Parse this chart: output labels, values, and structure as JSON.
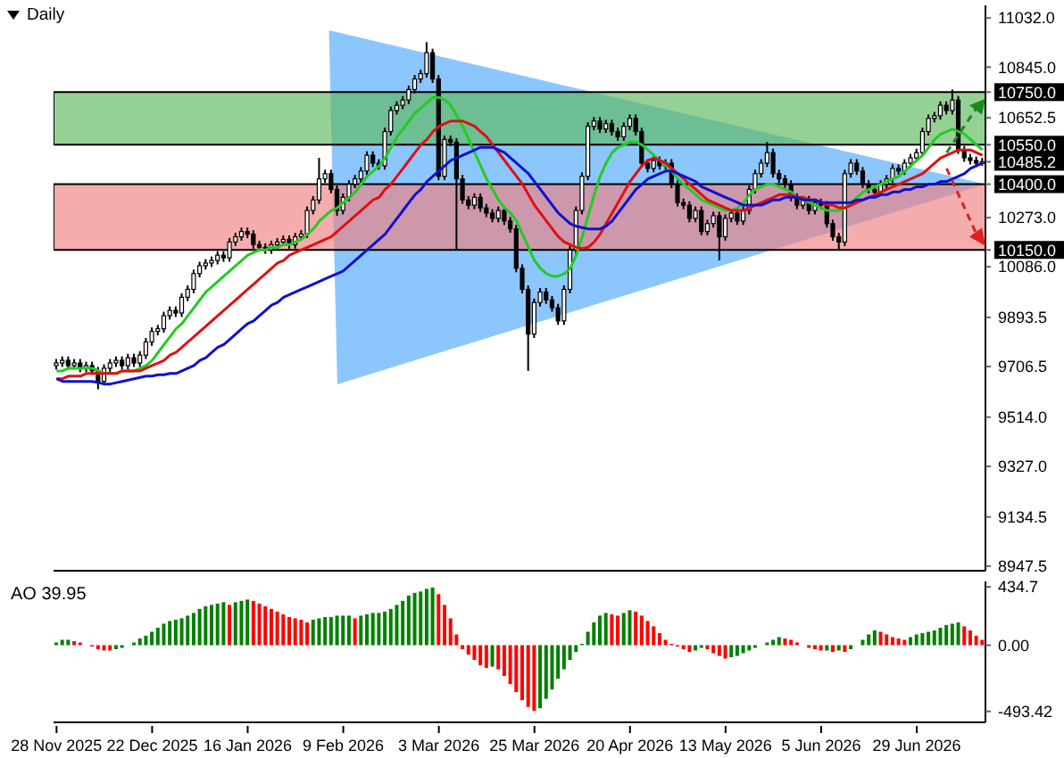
{
  "chart_data": [
    {
      "type": "candlestick",
      "title": "Daily",
      "categories": [
        null,
        null,
        null,
        null,
        null,
        null,
        null,
        null,
        null,
        null,
        null,
        null,
        null,
        null,
        null,
        null,
        null,
        null,
        null,
        null,
        null,
        null,
        null,
        null,
        null,
        null,
        null,
        null,
        null,
        null,
        null,
        null,
        null,
        null,
        null,
        null,
        null,
        null,
        null,
        null,
        null,
        null,
        null,
        null,
        null,
        null,
        null,
        null,
        null,
        null,
        null,
        null,
        null,
        null,
        null,
        null,
        null,
        null,
        null,
        null,
        null,
        null,
        null,
        null,
        null,
        null,
        null,
        null,
        null,
        null,
        null,
        null,
        null,
        null,
        null,
        null,
        null,
        null,
        null,
        null,
        null,
        null,
        null,
        null,
        null,
        null,
        null,
        null,
        null,
        null,
        null,
        null,
        null,
        null,
        null,
        null,
        null,
        null,
        null,
        null,
        null,
        null,
        null,
        null,
        null,
        null,
        null,
        null,
        null,
        null,
        null,
        null,
        null,
        null,
        null,
        null,
        null,
        null,
        null,
        null,
        null,
        null,
        null,
        null,
        null,
        null,
        null,
        null,
        null,
        null,
        null,
        null,
        null,
        null,
        null,
        null,
        null,
        null,
        null,
        null,
        null,
        null,
        null,
        null,
        null,
        null,
        null,
        null,
        null,
        null,
        null,
        null,
        null,
        null,
        null,
        null
      ],
      "ohlc": [
        [
          9710,
          9735,
          9695,
          9720
        ],
        [
          9720,
          9745,
          9705,
          9730
        ],
        [
          9730,
          9745,
          9695,
          9710
        ],
        [
          9710,
          9735,
          9695,
          9720
        ],
        [
          9720,
          9735,
          9685,
          9700
        ],
        [
          9700,
          9725,
          9685,
          9710
        ],
        [
          9710,
          9725,
          9675,
          9690
        ],
        [
          9690,
          9705,
          9620,
          9650
        ],
        [
          9650,
          9715,
          9635,
          9700
        ],
        [
          9700,
          9735,
          9685,
          9720
        ],
        [
          9720,
          9745,
          9705,
          9730
        ],
        [
          9730,
          9745,
          9695,
          9710
        ],
        [
          9710,
          9755,
          9695,
          9740
        ],
        [
          9740,
          9755,
          9705,
          9720
        ],
        [
          9720,
          9765,
          9705,
          9750
        ],
        [
          9750,
          9815,
          9735,
          9800
        ],
        [
          9800,
          9855,
          9785,
          9840
        ],
        [
          9840,
          9865,
          9825,
          9850
        ],
        [
          9850,
          9915,
          9835,
          9900
        ],
        [
          9900,
          9935,
          9885,
          9920
        ],
        [
          9920,
          9935,
          9895,
          9910
        ],
        [
          9910,
          9985,
          9895,
          9970
        ],
        [
          9970,
          10015,
          9955,
          10000
        ],
        [
          10000,
          10075,
          9985,
          10060
        ],
        [
          10060,
          10105,
          10045,
          10090
        ],
        [
          10090,
          10115,
          10075,
          10100
        ],
        [
          10100,
          10125,
          10085,
          10110
        ],
        [
          10110,
          10145,
          10095,
          10130
        ],
        [
          10130,
          10145,
          10105,
          10120
        ],
        [
          10120,
          10195,
          10105,
          10180
        ],
        [
          10180,
          10215,
          10165,
          10200
        ],
        [
          10200,
          10235,
          10185,
          10220
        ],
        [
          10220,
          10235,
          10195,
          10210
        ],
        [
          10210,
          10225,
          10155,
          10170
        ],
        [
          10170,
          10185,
          10145,
          10160
        ],
        [
          10160,
          10175,
          10135,
          10150
        ],
        [
          10150,
          10185,
          10135,
          10170
        ],
        [
          10170,
          10195,
          10155,
          10180
        ],
        [
          10180,
          10205,
          10165,
          10190
        ],
        [
          10190,
          10205,
          10155,
          10170
        ],
        [
          10170,
          10215,
          10155,
          10200
        ],
        [
          10200,
          10225,
          10185,
          10210
        ],
        [
          10210,
          10315,
          10195,
          10300
        ],
        [
          10300,
          10355,
          10285,
          10340
        ],
        [
          10340,
          10500,
          10325,
          10420
        ],
        [
          10420,
          10455,
          10405,
          10440
        ],
        [
          10440,
          10455,
          10365,
          10380
        ],
        [
          10380,
          10395,
          10280,
          10300
        ],
        [
          10300,
          10365,
          10285,
          10350
        ],
        [
          10350,
          10415,
          10335,
          10400
        ],
        [
          10400,
          10435,
          10385,
          10420
        ],
        [
          10420,
          10465,
          10405,
          10450
        ],
        [
          10450,
          10525,
          10435,
          10510
        ],
        [
          10510,
          10525,
          10465,
          10480
        ],
        [
          10480,
          10495,
          10455,
          10470
        ],
        [
          10470,
          10615,
          10455,
          10600
        ],
        [
          10600,
          10695,
          10585,
          10680
        ],
        [
          10680,
          10715,
          10665,
          10700
        ],
        [
          10700,
          10735,
          10685,
          10720
        ],
        [
          10720,
          10775,
          10705,
          10760
        ],
        [
          10760,
          10815,
          10745,
          10800
        ],
        [
          10800,
          10835,
          10785,
          10820
        ],
        [
          10820,
          10940,
          10805,
          10900
        ],
        [
          10900,
          10915,
          10785,
          10800
        ],
        [
          10800,
          10815,
          10415,
          10430
        ],
        [
          10430,
          10585,
          10415,
          10570
        ],
        [
          10570,
          10585,
          10545,
          10560
        ],
        [
          10560,
          10575,
          10150,
          10420
        ],
        [
          10420,
          10435,
          10325,
          10340
        ],
        [
          10340,
          10355,
          10305,
          10320
        ],
        [
          10320,
          10365,
          10305,
          10350
        ],
        [
          10350,
          10365,
          10295,
          10310
        ],
        [
          10310,
          10325,
          10275,
          10290
        ],
        [
          10290,
          10305,
          10255,
          10270
        ],
        [
          10270,
          10315,
          10255,
          10300
        ],
        [
          10300,
          10315,
          10245,
          10260
        ],
        [
          10260,
          10275,
          10215,
          10230
        ],
        [
          10230,
          10245,
          10065,
          10080
        ],
        [
          10080,
          10095,
          9985,
          10000
        ],
        [
          10000,
          10015,
          9690,
          9830
        ],
        [
          9830,
          9965,
          9815,
          9950
        ],
        [
          9950,
          10005,
          9935,
          9990
        ],
        [
          9990,
          10005,
          9945,
          9960
        ],
        [
          9960,
          9975,
          9915,
          9930
        ],
        [
          9930,
          9945,
          9865,
          9880
        ],
        [
          9880,
          10015,
          9865,
          10000
        ],
        [
          10000,
          10165,
          9985,
          10150
        ],
        [
          10150,
          10315,
          10135,
          10300
        ],
        [
          10300,
          10445,
          10285,
          10430
        ],
        [
          10430,
          10635,
          10415,
          10620
        ],
        [
          10620,
          10655,
          10605,
          10640
        ],
        [
          10640,
          10655,
          10595,
          10610
        ],
        [
          10610,
          10645,
          10595,
          10630
        ],
        [
          10630,
          10645,
          10585,
          10600
        ],
        [
          10600,
          10615,
          10565,
          10580
        ],
        [
          10580,
          10635,
          10565,
          10620
        ],
        [
          10620,
          10665,
          10605,
          10650
        ],
        [
          10650,
          10665,
          10585,
          10600
        ],
        [
          10600,
          10615,
          10465,
          10480
        ],
        [
          10480,
          10495,
          10445,
          10460
        ],
        [
          10460,
          10505,
          10445,
          10490
        ],
        [
          10490,
          10505,
          10455,
          10470
        ],
        [
          10470,
          10495,
          10455,
          10480
        ],
        [
          10480,
          10495,
          10385,
          10400
        ],
        [
          10400,
          10415,
          10315,
          10330
        ],
        [
          10330,
          10345,
          10305,
          10320
        ],
        [
          10320,
          10335,
          10255,
          10270
        ],
        [
          10270,
          10315,
          10255,
          10300
        ],
        [
          10300,
          10315,
          10205,
          10220
        ],
        [
          10220,
          10265,
          10205,
          10250
        ],
        [
          10250,
          10295,
          10235,
          10280
        ],
        [
          10280,
          10295,
          10110,
          10200
        ],
        [
          10200,
          10285,
          10185,
          10270
        ],
        [
          10270,
          10305,
          10255,
          10290
        ],
        [
          10290,
          10305,
          10245,
          10260
        ],
        [
          10260,
          10315,
          10245,
          10300
        ],
        [
          10300,
          10395,
          10285,
          10380
        ],
        [
          10380,
          10455,
          10365,
          10440
        ],
        [
          10440,
          10495,
          10425,
          10480
        ],
        [
          10480,
          10560,
          10465,
          10520
        ],
        [
          10520,
          10535,
          10425,
          10440
        ],
        [
          10440,
          10455,
          10405,
          10420
        ],
        [
          10420,
          10435,
          10385,
          10400
        ],
        [
          10400,
          10415,
          10335,
          10350
        ],
        [
          10350,
          10365,
          10305,
          10320
        ],
        [
          10320,
          10355,
          10305,
          10340
        ],
        [
          10340,
          10355,
          10285,
          10300
        ],
        [
          10300,
          10345,
          10285,
          10330
        ],
        [
          10330,
          10345,
          10305,
          10320
        ],
        [
          10320,
          10335,
          10235,
          10250
        ],
        [
          10250,
          10265,
          10185,
          10200
        ],
        [
          10200,
          10215,
          10150,
          10180
        ],
        [
          10180,
          10455,
          10165,
          10440
        ],
        [
          10440,
          10495,
          10425,
          10480
        ],
        [
          10480,
          10495,
          10435,
          10450
        ],
        [
          10450,
          10465,
          10385,
          10400
        ],
        [
          10400,
          10415,
          10365,
          10380
        ],
        [
          10380,
          10395,
          10355,
          10370
        ],
        [
          10370,
          10415,
          10355,
          10400
        ],
        [
          10400,
          10435,
          10385,
          10420
        ],
        [
          10420,
          10475,
          10405,
          10460
        ],
        [
          10460,
          10475,
          10435,
          10450
        ],
        [
          10450,
          10495,
          10435,
          10480
        ],
        [
          10480,
          10515,
          10465,
          10500
        ],
        [
          10500,
          10535,
          10485,
          10520
        ],
        [
          10520,
          10615,
          10505,
          10600
        ],
        [
          10600,
          10665,
          10585,
          10650
        ],
        [
          10650,
          10675,
          10635,
          10660
        ],
        [
          10660,
          10715,
          10645,
          10700
        ],
        [
          10700,
          10715,
          10665,
          10680
        ],
        [
          10680,
          10760,
          10665,
          10720
        ],
        [
          10720,
          10735,
          10515,
          10530
        ],
        [
          10530,
          10545,
          10485,
          10500
        ],
        [
          10500,
          10515,
          10475,
          10490
        ],
        [
          10490,
          10505,
          10465,
          10480
        ],
        [
          10480,
          10500,
          10470,
          10485.2
        ]
      ],
      "series": [
        {
          "type": "line",
          "color": "#22cc22",
          "values": [
            9690,
            9690,
            9700,
            9700,
            9700,
            9700,
            9700,
            9690,
            9680,
            9680,
            9680,
            9690,
            9690,
            9690,
            9700,
            9710,
            9730,
            9760,
            9790,
            9820,
            9850,
            9870,
            9900,
            9930,
            9960,
            9990,
            10010,
            10030,
            10050,
            10070,
            10090,
            10110,
            10130,
            10140,
            10150,
            10150,
            10160,
            10160,
            10170,
            10170,
            10180,
            10190,
            10210,
            10230,
            10260,
            10280,
            10300,
            10310,
            10330,
            10350,
            10370,
            10400,
            10430,
            10450,
            10470,
            10500,
            10540,
            10580,
            10610,
            10640,
            10670,
            10690,
            10710,
            10730,
            10730,
            10720,
            10700,
            10660,
            10620,
            10570,
            10520,
            10470,
            10420,
            10380,
            10340,
            10310,
            10290,
            10260,
            10210,
            10160,
            10110,
            10080,
            10060,
            10050,
            10050,
            10060,
            10080,
            10130,
            10200,
            10280,
            10360,
            10430,
            10480,
            10520,
            10540,
            10550,
            10560,
            10560,
            10550,
            10530,
            10510,
            10490,
            10470,
            10450,
            10420,
            10400,
            10380,
            10360,
            10340,
            10330,
            10320,
            10310,
            10300,
            10300,
            10310,
            10330,
            10360,
            10380,
            10390,
            10400,
            10400,
            10390,
            10380,
            10370,
            10350,
            10340,
            10330,
            10320,
            10310,
            10300,
            10300,
            10300,
            10310,
            10330,
            10350,
            10370,
            10380,
            10390,
            10400,
            10410,
            10420,
            10430,
            10450,
            10470,
            10490,
            10510,
            10540,
            10570,
            10590,
            10600,
            10610,
            10600,
            10590,
            10570,
            10550,
            10530
          ]
        },
        {
          "type": "line",
          "color": "#e01010",
          "values": [
            9660,
            9660,
            9670,
            9670,
            9670,
            9680,
            9680,
            9680,
            9680,
            9680,
            9680,
            9690,
            9690,
            9690,
            9690,
            9700,
            9710,
            9720,
            9730,
            9750,
            9760,
            9780,
            9800,
            9820,
            9840,
            9860,
            9880,
            9900,
            9920,
            9940,
            9960,
            9980,
            10000,
            10020,
            10040,
            10060,
            10080,
            10100,
            10110,
            10130,
            10140,
            10150,
            10160,
            10170,
            10180,
            10190,
            10200,
            10220,
            10240,
            10260,
            10280,
            10300,
            10320,
            10340,
            10350,
            10380,
            10400,
            10430,
            10460,
            10490,
            10520,
            10550,
            10570,
            10600,
            10620,
            10630,
            10640,
            10640,
            10640,
            10630,
            10620,
            10600,
            10580,
            10550,
            10520,
            10490,
            10460,
            10430,
            10400,
            10360,
            10320,
            10290,
            10260,
            10230,
            10200,
            10180,
            10170,
            10160,
            10155,
            10160,
            10180,
            10210,
            10250,
            10290,
            10330,
            10370,
            10410,
            10440,
            10470,
            10490,
            10500,
            10490,
            10480,
            10460,
            10440,
            10420,
            10400,
            10380,
            10360,
            10340,
            10330,
            10320,
            10310,
            10300,
            10300,
            10300,
            10310,
            10320,
            10330,
            10340,
            10350,
            10360,
            10360,
            10360,
            10350,
            10350,
            10340,
            10340,
            10330,
            10320,
            10320,
            10310,
            10310,
            10320,
            10330,
            10340,
            10350,
            10360,
            10370,
            10380,
            10390,
            10400,
            10410,
            10420,
            10430,
            10440,
            10460,
            10480,
            10500,
            10510,
            10520,
            10530,
            10530,
            10530,
            10520,
            10510
          ]
        },
        {
          "type": "line",
          "color": "#1010d0",
          "values": [
            9660,
            9650,
            9650,
            9650,
            9650,
            9650,
            9650,
            9645,
            9640,
            9640,
            9645,
            9650,
            9655,
            9660,
            9665,
            9670,
            9670,
            9675,
            9675,
            9680,
            9680,
            9690,
            9700,
            9710,
            9730,
            9740,
            9760,
            9780,
            9790,
            9810,
            9830,
            9850,
            9870,
            9880,
            9900,
            9920,
            9940,
            9950,
            9970,
            9980,
            9990,
            10000,
            10010,
            10020,
            10030,
            10040,
            10050,
            10060,
            10070,
            10090,
            10110,
            10130,
            10150,
            10170,
            10190,
            10210,
            10240,
            10270,
            10300,
            10330,
            10360,
            10380,
            10410,
            10430,
            10450,
            10470,
            10490,
            10500,
            10510,
            10520,
            10530,
            10540,
            10540,
            10540,
            10530,
            10520,
            10500,
            10480,
            10460,
            10440,
            10410,
            10380,
            10350,
            10320,
            10290,
            10270,
            10250,
            10240,
            10235,
            10230,
            10230,
            10230,
            10240,
            10260,
            10290,
            10320,
            10350,
            10380,
            10400,
            10420,
            10430,
            10440,
            10450,
            10450,
            10440,
            10430,
            10420,
            10410,
            10390,
            10380,
            10370,
            10360,
            10350,
            10340,
            10330,
            10320,
            10320,
            10320,
            10320,
            10330,
            10340,
            10340,
            10350,
            10350,
            10350,
            10340,
            10340,
            10340,
            10330,
            10330,
            10330,
            10330,
            10330,
            10330,
            10340,
            10340,
            10350,
            10350,
            10360,
            10360,
            10370,
            10370,
            10380,
            10380,
            10390,
            10390,
            10400,
            10400,
            10410,
            10410,
            10420,
            10430,
            10440,
            10460,
            10470,
            10480
          ]
        }
      ],
      "ylim": [
        8930,
        11080
      ],
      "yticks": [
        {
          "value": 11032,
          "label": "11032.0"
        },
        {
          "value": 10845,
          "label": "10845.0"
        },
        {
          "value": 10750,
          "label": "10750.0"
        },
        {
          "value": 10652.5,
          "label": "10652.5"
        },
        {
          "value": 10550,
          "label": "10550.0"
        },
        {
          "value": 10485.2,
          "label": "10485.2"
        },
        {
          "value": 10400,
          "label": "10400.0"
        },
        {
          "value": 10273,
          "label": "10273.0"
        },
        {
          "value": 10150,
          "label": "10150.0"
        },
        {
          "value": 10086,
          "label": "10086.0"
        },
        {
          "value": 9893.5,
          "label": "9893.5"
        },
        {
          "value": 9706.5,
          "label": "9706.5"
        },
        {
          "value": 9514,
          "label": "9514.0"
        },
        {
          "value": 9327,
          "label": "9327.0"
        },
        {
          "value": 9134.5,
          "label": "9134.5"
        },
        {
          "value": 8947.5,
          "label": "8947.5"
        }
      ],
      "bands": [
        {
          "axis": "y",
          "from": 10550,
          "to": 10750,
          "color": "#5cb85c"
        },
        {
          "axis": "y",
          "from": 10150,
          "to": 10400,
          "color": "#f08080"
        }
      ],
      "tick_labels": "y"
    },
    {
      "type": "bar",
      "title": "AO 39.95",
      "categories": [
        "28 Nov 2025",
        null,
        null,
        null,
        null,
        null,
        null,
        null,
        null,
        null,
        null,
        null,
        null,
        null,
        null,
        null,
        "22 Dec 2025",
        null,
        null,
        null,
        null,
        null,
        null,
        null,
        null,
        null,
        null,
        null,
        null,
        null,
        null,
        null,
        "16 Jan 2026",
        null,
        null,
        null,
        null,
        null,
        null,
        null,
        null,
        null,
        null,
        null,
        null,
        null,
        null,
        null,
        "9 Feb 2026",
        null,
        null,
        null,
        null,
        null,
        null,
        null,
        null,
        null,
        null,
        null,
        null,
        null,
        null,
        null,
        "3 Mar 2026",
        null,
        null,
        null,
        null,
        null,
        null,
        null,
        null,
        null,
        null,
        null,
        null,
        null,
        null,
        null,
        "25 Mar 2026",
        null,
        null,
        null,
        null,
        null,
        null,
        null,
        null,
        null,
        null,
        null,
        null,
        null,
        null,
        null,
        "20 Apr 2026",
        null,
        null,
        null,
        null,
        null,
        null,
        null,
        null,
        null,
        null,
        null,
        null,
        null,
        null,
        null,
        "13 May 2026",
        null,
        null,
        null,
        null,
        null,
        null,
        null,
        null,
        null,
        null,
        null,
        null,
        null,
        null,
        null,
        "5 Jun 2026",
        null,
        null,
        null,
        null,
        null,
        null,
        null,
        null,
        null,
        null,
        null,
        null,
        null,
        null,
        null,
        "29 Jun 2026",
        null,
        null,
        null,
        null,
        null,
        null,
        null,
        null,
        null,
        null,
        null
      ],
      "values": [
        20,
        40,
        40,
        30,
        20,
        0,
        -10,
        -30,
        -40,
        -40,
        -30,
        -20,
        0,
        20,
        50,
        70,
        100,
        130,
        160,
        180,
        190,
        200,
        220,
        240,
        270,
        290,
        300,
        310,
        320,
        300,
        320,
        330,
        340,
        330,
        310,
        290,
        270,
        250,
        230,
        210,
        200,
        190,
        170,
        190,
        200,
        210,
        210,
        220,
        220,
        220,
        200,
        220,
        230,
        240,
        240,
        250,
        270,
        300,
        330,
        370,
        390,
        400,
        420,
        430,
        380,
        300,
        200,
        80,
        -30,
        -70,
        -110,
        -150,
        -170,
        -160,
        -180,
        -230,
        -290,
        -350,
        -410,
        -460,
        -490,
        -470,
        -400,
        -330,
        -250,
        -180,
        -110,
        -50,
        10,
        100,
        170,
        220,
        240,
        230,
        220,
        240,
        260,
        250,
        220,
        180,
        140,
        90,
        40,
        10,
        -10,
        -30,
        -50,
        -40,
        -20,
        -30,
        -60,
        -80,
        -100,
        -90,
        -80,
        -60,
        -40,
        -20,
        0,
        20,
        40,
        60,
        50,
        40,
        20,
        0,
        -20,
        -30,
        -40,
        -40,
        -50,
        -40,
        -50,
        -30,
        0,
        40,
        80,
        110,
        100,
        80,
        60,
        50,
        40,
        60,
        80,
        90,
        100,
        110,
        130,
        150,
        160,
        170,
        140,
        110,
        70,
        39.95
      ],
      "colors": [
        "#008000",
        "#008000",
        "#008000",
        "#ff0000",
        "#ff0000",
        "#ff0000",
        "#ff0000",
        "#ff0000",
        "#ff0000",
        "#ff0000",
        "#008000",
        "#008000",
        "#008000",
        "#008000",
        "#008000",
        "#008000",
        "#008000",
        "#008000",
        "#008000",
        "#008000",
        "#008000",
        "#008000",
        "#008000",
        "#008000",
        "#008000",
        "#008000",
        "#008000",
        "#008000",
        "#008000",
        "#ff0000",
        "#008000",
        "#008000",
        "#008000",
        "#ff0000",
        "#ff0000",
        "#ff0000",
        "#ff0000",
        "#ff0000",
        "#ff0000",
        "#ff0000",
        "#ff0000",
        "#ff0000",
        "#ff0000",
        "#008000",
        "#008000",
        "#008000",
        "#008000",
        "#008000",
        "#008000",
        "#008000",
        "#ff0000",
        "#008000",
        "#008000",
        "#008000",
        "#008000",
        "#008000",
        "#008000",
        "#008000",
        "#008000",
        "#008000",
        "#008000",
        "#008000",
        "#008000",
        "#008000",
        "#ff0000",
        "#ff0000",
        "#ff0000",
        "#ff0000",
        "#ff0000",
        "#ff0000",
        "#ff0000",
        "#ff0000",
        "#ff0000",
        "#008000",
        "#ff0000",
        "#ff0000",
        "#ff0000",
        "#ff0000",
        "#ff0000",
        "#ff0000",
        "#ff0000",
        "#008000",
        "#008000",
        "#008000",
        "#008000",
        "#008000",
        "#008000",
        "#008000",
        "#008000",
        "#008000",
        "#008000",
        "#008000",
        "#008000",
        "#ff0000",
        "#ff0000",
        "#008000",
        "#008000",
        "#ff0000",
        "#ff0000",
        "#ff0000",
        "#ff0000",
        "#ff0000",
        "#ff0000",
        "#ff0000",
        "#ff0000",
        "#ff0000",
        "#ff0000",
        "#008000",
        "#008000",
        "#ff0000",
        "#ff0000",
        "#ff0000",
        "#ff0000",
        "#008000",
        "#008000",
        "#008000",
        "#008000",
        "#008000",
        "#008000",
        "#008000",
        "#008000",
        "#008000",
        "#ff0000",
        "#ff0000",
        "#ff0000",
        "#ff0000",
        "#ff0000",
        "#ff0000",
        "#ff0000",
        "#008000",
        "#ff0000",
        "#008000",
        "#ff0000",
        "#008000",
        "#008000",
        "#008000",
        "#008000",
        "#008000",
        "#ff0000",
        "#ff0000",
        "#ff0000",
        "#ff0000",
        "#ff0000",
        "#008000",
        "#008000",
        "#008000",
        "#008000",
        "#008000",
        "#008000",
        "#008000",
        "#008000",
        "#008000",
        "#ff0000",
        "#ff0000",
        "#ff0000",
        "#ff0000"
      ],
      "ylim": [
        -575,
        475
      ],
      "yticks": [
        434.7,
        {
          "value": 0,
          "label": "0.00"
        },
        -493.42
      ]
    }
  ]
}
